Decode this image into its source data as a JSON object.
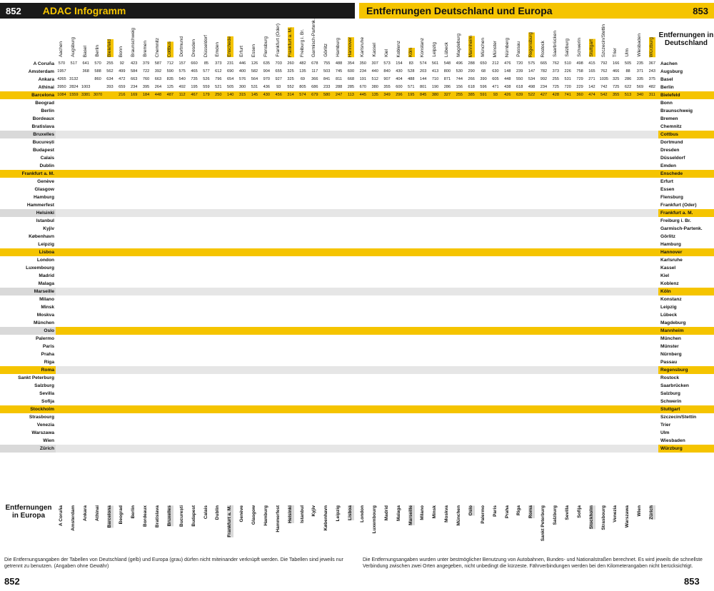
{
  "header": {
    "left_page_number": "852",
    "left_title": "ADAC Infogramm",
    "right_title": "Entfernungen Deutschland und Europa",
    "right_page_number": "853"
  },
  "legend": {
    "germany": "Entfernungen in Deutschland",
    "europe": "Entfernungen in Europa"
  },
  "german_cities": [
    "Aachen",
    "Augsburg",
    "Basel",
    "Berlin",
    "Bielefeld",
    "Bonn",
    "Braunschweig",
    "Bremen",
    "Chemnitz",
    "Cottbus",
    "Dortmund",
    "Dresden",
    "Düsseldorf",
    "Emden",
    "Enschede",
    "Erfurt",
    "Essen",
    "Flensburg",
    "Frankfurt (Oder)",
    "Frankfurt a. M.",
    "Freiburg i. Br.",
    "Garmisch-Partenk.",
    "Görlitz",
    "Hamburg",
    "Hannover",
    "Karlsruhe",
    "Kassel",
    "Kiel",
    "Koblenz",
    "Köln",
    "Konstanz",
    "Leipzig",
    "Lübeck",
    "Magdeburg",
    "Mannheim",
    "München",
    "Münster",
    "Nürnberg",
    "Passau",
    "Regensburg",
    "Rostock",
    "Saarbrücken",
    "Salzburg",
    "Schwerin",
    "Stuttgart",
    "Szczecin/Stettin",
    "Trier",
    "Ulm",
    "Wiesbaden",
    "Würzburg"
  ],
  "european_cities": [
    "A Coruña",
    "Amsterdam",
    "Ankara",
    "Athinai",
    "Barcelona",
    "Beograd",
    "Berlin",
    "Bordeaux",
    "Bratislava",
    "Bruxelles",
    "București",
    "Budapest",
    "Calais",
    "Dublin",
    "Frankfurt a. M.",
    "Genève",
    "Glasgow",
    "Hamburg",
    "Hammerfest",
    "Helsinki",
    "Istanbul",
    "Kyjiv",
    "København",
    "Leipzig",
    "Lisboa",
    "London",
    "Luxembourg",
    "Madrid",
    "Malaga",
    "Marseille",
    "Milano",
    "Minsk",
    "Moskva",
    "München",
    "Oslo",
    "Palermo",
    "Paris",
    "Praha",
    "Riga",
    "Roma",
    "Sankt Peterburg",
    "Salzburg",
    "Sevilla",
    "Sofija",
    "Stockholm",
    "Strasbourg",
    "Venezia",
    "Warszawa",
    "Wien",
    "Zürich"
  ],
  "europe_highlight_rows": [
    "Barcelona",
    "Bruxelles",
    "Frankfurt a. M.",
    "Helsinki",
    "Lisboa",
    "Marseille",
    "Oslo",
    "Roma",
    "Stockholm",
    "Zürich"
  ],
  "germany_highlight_rows": [
    "Bielefeld",
    "Cottbus",
    "Enschede",
    "Frankfurt a. M.",
    "Hannover",
    "Köln",
    "Mannheim",
    "Regensburg",
    "Stuttgart",
    "Würzburg"
  ],
  "sample_rows": [
    [
      "570",
      "517",
      "641",
      "570",
      "255",
      "92",
      "423",
      "379",
      "587",
      "712",
      "157",
      "660",
      "85",
      "373",
      "231",
      "446",
      "126",
      "635",
      "703",
      "260",
      "482",
      "678",
      "755",
      "488",
      "354",
      "350",
      "307",
      "573",
      "154",
      "83",
      "574",
      "561",
      "548",
      "496",
      "288",
      "650",
      "212",
      "476",
      "720",
      "575",
      "665",
      "762",
      "510",
      "498",
      "415",
      "792",
      "166",
      "505",
      "235",
      "367"
    ],
    [
      "1957",
      "",
      "368",
      "588",
      "562",
      "499",
      "584",
      "722",
      "392",
      "590",
      "575",
      "465",
      "577",
      "612",
      "690",
      "400",
      "582",
      "904",
      "655",
      "325",
      "135",
      "117",
      "503",
      "745",
      "600",
      "234",
      "440",
      "840",
      "430",
      "528",
      "203",
      "413",
      "800",
      "530",
      "290",
      "68",
      "630",
      "148",
      "239",
      "147",
      "782",
      "373",
      "226",
      "758",
      "165",
      "762",
      "466",
      "88",
      "371",
      "243"
    ],
    [
      "4265",
      "3132",
      "",
      "860",
      "634",
      "472",
      "663",
      "760",
      "663",
      "835",
      "540",
      "735",
      "526",
      "796",
      "654",
      "576",
      "564",
      "970",
      "927",
      "325",
      "69",
      "366",
      "841",
      "811",
      "668",
      "191",
      "512",
      "907",
      "404",
      "488",
      "144",
      "710",
      "871",
      "744",
      "266",
      "390",
      "605",
      "448",
      "550",
      "534",
      "992",
      "255",
      "531",
      "729",
      "271",
      "1035",
      "325",
      "286",
      "335",
      "375"
    ],
    [
      "3950",
      "2824",
      "1003",
      "",
      "393",
      "659",
      "234",
      "395",
      "264",
      "125",
      "492",
      "195",
      "559",
      "521",
      "505",
      "300",
      "531",
      "436",
      "93",
      "552",
      "805",
      "686",
      "233",
      "288",
      "285",
      "670",
      "380",
      "355",
      "600",
      "571",
      "801",
      "190",
      "286",
      "156",
      "618",
      "596",
      "471",
      "438",
      "618",
      "498",
      "234",
      "725",
      "720",
      "229",
      "142",
      "742",
      "725",
      "622",
      "569",
      "482"
    ],
    [
      "1084",
      "1559",
      "3381",
      "3070",
      "",
      "216",
      "169",
      "184",
      "448",
      "487",
      "112",
      "467",
      "179",
      "250",
      "140",
      "315",
      "145",
      "430",
      "456",
      "314",
      "574",
      "679",
      "580",
      "247",
      "113",
      "445",
      "135",
      "349",
      "296",
      "195",
      "845",
      "380",
      "327",
      "255",
      "385",
      "591",
      "93",
      "426",
      "639",
      "522",
      "427",
      "428",
      "741",
      "360",
      "474",
      "542",
      "355",
      "513",
      "340",
      "311"
    ]
  ],
  "footnote_left": "Die Entfernungsangaben der Tabellen von Deutschland (gelb) und Europa (grau) dürfen nicht miteinander verknüpft werden. Die Tabellen sind jeweils nur getrennt zu benutzen. (Angaben ohne Gewähr)",
  "footnote_right": "Die Entfernungsangaben wurden unter bestmöglicher Benutzung von Autobahnen, Bundes- und Nationalstraßen berechnet. Es wird jeweils die schnellste Verbindung zwischen zwei Orten angegeben, nicht unbedingt die kürzeste. Fährverbindungen werden bei den Kilometerangaben nicht berücksichtigt.",
  "colors": {
    "yellow": "#f5c400",
    "grey": "#d9d9d9",
    "black": "#1a1a1a"
  }
}
